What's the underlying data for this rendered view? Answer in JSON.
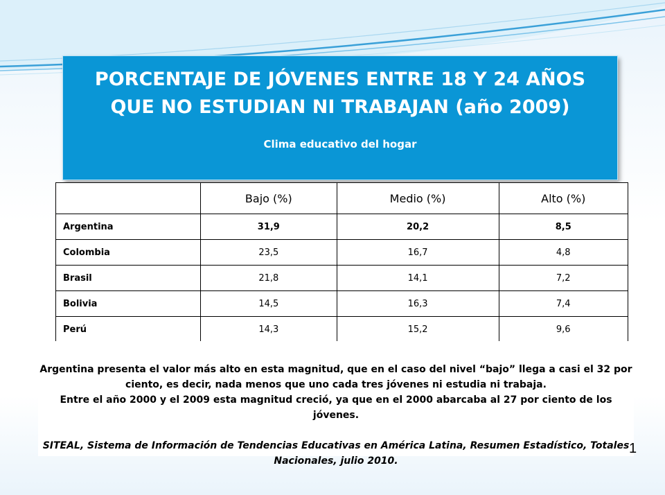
{
  "slide": {
    "title_line1": "PORCENTAJE DE JÓVENES ENTRE 18 Y 24 AÑOS",
    "title_line2": "QUE NO ESTUDIAN NI TRABAJAN (año 2009)",
    "subtitle": "Clima educativo del hogar",
    "page_number": "1"
  },
  "table": {
    "headers": [
      "",
      "Bajo (%)",
      "Medio (%)",
      "Alto (%)"
    ],
    "rows": [
      {
        "country": "Argentina",
        "bajo": "31,9",
        "medio": "20,2",
        "alto": "8,5"
      },
      {
        "country": "Colombia",
        "bajo": "23,5",
        "medio": "16,7",
        "alto": "4,8"
      },
      {
        "country": "Brasil",
        "bajo": "21,8",
        "medio": "14,1",
        "alto": "7,2"
      },
      {
        "country": "Bolivia",
        "bajo": "14,5",
        "medio": "16,3",
        "alto": "7,4"
      },
      {
        "country": "Perú",
        "bajo": "14,3",
        "medio": "15,2",
        "alto": "9,6"
      }
    ]
  },
  "note": {
    "paragraph1": "Argentina presenta el valor más alto en esta magnitud, que en el caso del nivel “bajo” llega a casi el 32 por ciento, es decir, nada menos que uno cada tres jóvenes ni estudia ni trabaja.",
    "paragraph2": "Entre el año 2000 y el 2009 esta magnitud creció, ya que en el 2000 abarcaba al 27 por ciento de los jóvenes.",
    "source": "SITEAL, Sistema de Información de Tendencias Educativas en América Latina, Resumen Estadístico, Totales Nacionales, julio 2010."
  },
  "colors": {
    "title_box": "#0a96d6",
    "swoosh_dark": "#3aa0d8",
    "swoosh_light": "#a9d7f0"
  }
}
